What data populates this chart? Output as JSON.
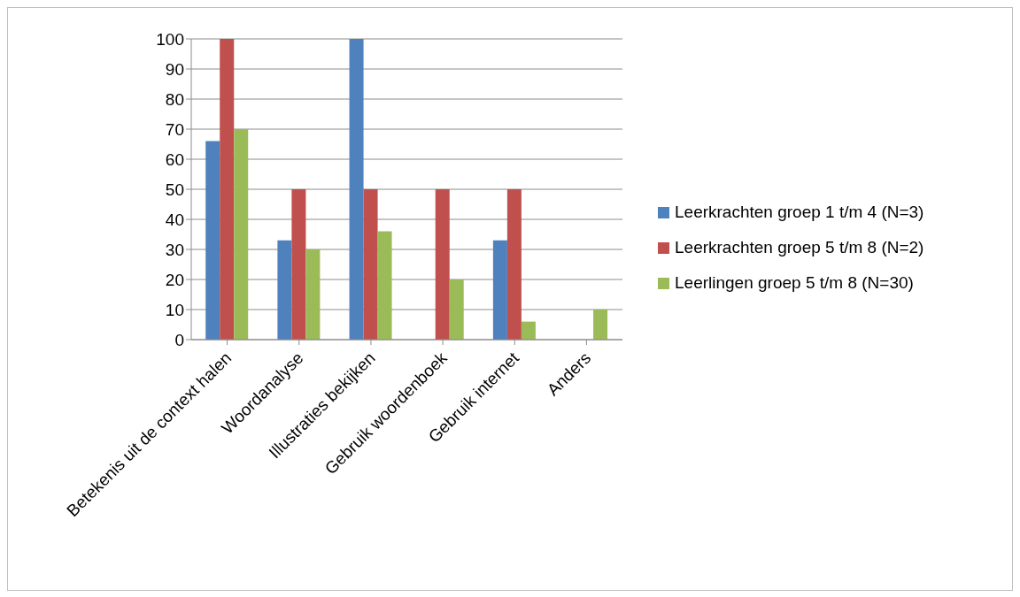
{
  "chart_data": {
    "type": "bar",
    "categories": [
      "Betekenis uit de context halen",
      "Woordanalyse",
      "Illustraties bekijken",
      "Gebruik woordenboek",
      "Gebruik internet",
      "Anders"
    ],
    "series": [
      {
        "name": "Leerkrachten groep 1 t/m 4 (N=3)",
        "color": "#4f81bd",
        "values": [
          66,
          33,
          100,
          0,
          33,
          0
        ]
      },
      {
        "name": "Leerkrachten groep 5 t/m 8 (N=2)",
        "color": "#c0504d",
        "values": [
          100,
          50,
          50,
          50,
          50,
          0
        ]
      },
      {
        "name": "Leerlingen groep 5 t/m 8 (N=30)",
        "color": "#9bbb59",
        "values": [
          70,
          30,
          36,
          20,
          6,
          10
        ]
      }
    ],
    "ylim": [
      0,
      100
    ],
    "yticks": [
      0,
      10,
      20,
      30,
      40,
      50,
      60,
      70,
      80,
      90,
      100
    ],
    "grid": "y",
    "legend": "right"
  }
}
